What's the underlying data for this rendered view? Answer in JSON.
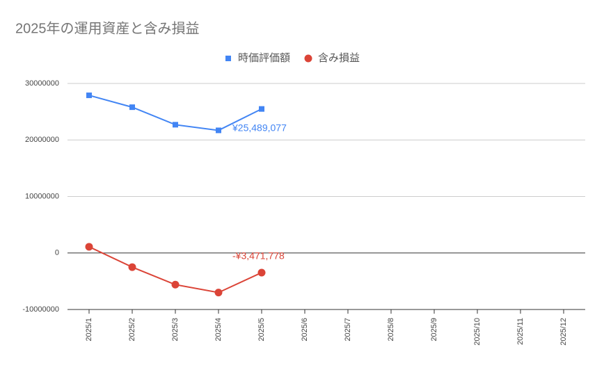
{
  "chart_data": {
    "type": "line",
    "title": "2025年の運用資産と含み損益",
    "categories": [
      "2025/1",
      "2025/2",
      "2025/3",
      "2025/4",
      "2025/5",
      "2025/6",
      "2025/7",
      "2025/8",
      "2025/9",
      "2025/10",
      "2025/11",
      "2025/12"
    ],
    "series": [
      {
        "name": "時価評価額",
        "color": "#4285f4",
        "marker": "square",
        "values": [
          27900000,
          25800000,
          22700000,
          21700000,
          25489077,
          null,
          null,
          null,
          null,
          null,
          null,
          null
        ],
        "value_labels": [
          null,
          null,
          null,
          null,
          "¥25,489,077",
          null,
          null,
          null,
          null,
          null,
          null,
          null
        ]
      },
      {
        "name": "含み損益",
        "color": "#db4437",
        "marker": "circle",
        "values": [
          1100000,
          -2500000,
          -5600000,
          -7000000,
          -3471778,
          null,
          null,
          null,
          null,
          null,
          null,
          null
        ],
        "value_labels": [
          null,
          null,
          null,
          null,
          "-¥3,471,778",
          null,
          null,
          null,
          null,
          null,
          null,
          null
        ]
      }
    ],
    "ylim": [
      -10000000,
      30000000
    ],
    "yticks": [
      -10000000,
      0,
      10000000,
      20000000,
      30000000
    ],
    "grid": true,
    "legend": "top"
  }
}
